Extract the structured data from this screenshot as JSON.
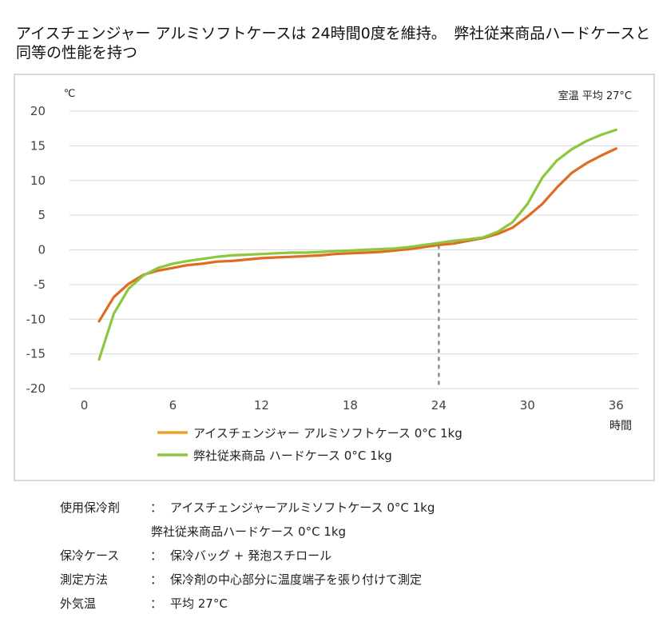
{
  "title": "アイスチェンジャー アルミソフトケースは 24時間0度を維持。　弊社従来商品ハードケースと同等の性能を持つ",
  "chart_data": {
    "type": "line",
    "title": "アイスチェンジャー アルミソフトケースは 24時間0度を維持。　弊社従来商品ハードケースと同等の性能を持つ",
    "ylabel": "℃",
    "xlabel": "時間",
    "annotation": "室温 平均 27°C",
    "xlim": [
      -1,
      37.5
    ],
    "ylim": [
      -20,
      20
    ],
    "xticks": [
      0,
      6,
      12,
      18,
      24,
      30,
      36
    ],
    "yticks": [
      20,
      15,
      10,
      5,
      0,
      -5,
      -10,
      -15,
      -20
    ],
    "y_tick_labels": [
      "20",
      "15",
      "10",
      "5",
      "0",
      "-5",
      "-10",
      "-15",
      "-20"
    ],
    "grid": true,
    "legend_position": "bottom-left",
    "reference_line": {
      "x": 24,
      "style": "dashed"
    },
    "x": [
      1,
      2,
      3,
      4,
      5,
      6,
      7,
      8,
      9,
      10,
      11,
      12,
      13,
      14,
      15,
      16,
      17,
      18,
      19,
      20,
      21,
      22,
      23,
      24,
      25,
      26,
      27,
      28,
      29,
      30,
      31,
      32,
      33,
      34,
      35,
      36
    ],
    "series": [
      {
        "name": "アイスチェンジャー アルミソフトケース 0°C 1kg",
        "color": "#e06c23",
        "values": [
          -10.3,
          -6.8,
          -4.9,
          -3.6,
          -3.0,
          -2.6,
          -2.2,
          -2.0,
          -1.7,
          -1.6,
          -1.4,
          -1.2,
          -1.1,
          -1.0,
          -0.9,
          -0.8,
          -0.6,
          -0.5,
          -0.4,
          -0.3,
          -0.1,
          0.1,
          0.4,
          0.7,
          0.9,
          1.3,
          1.7,
          2.3,
          3.2,
          4.8,
          6.6,
          9.0,
          11.1,
          12.5,
          13.6,
          14.6
        ]
      },
      {
        "name": "弊社従来商品 ハードケース 0°C 1kg",
        "color": "#8dc63f",
        "values": [
          -15.8,
          -9.2,
          -5.6,
          -3.7,
          -2.6,
          -2.0,
          -1.6,
          -1.3,
          -1.0,
          -0.8,
          -0.7,
          -0.6,
          -0.5,
          -0.4,
          -0.4,
          -0.3,
          -0.2,
          -0.1,
          0.0,
          0.1,
          0.2,
          0.4,
          0.7,
          1.0,
          1.3,
          1.5,
          1.8,
          2.6,
          4.0,
          6.6,
          10.4,
          12.9,
          14.5,
          15.7,
          16.6,
          17.3
        ]
      }
    ]
  },
  "legend_line_color": "#f0a020",
  "notes": {
    "rows": [
      {
        "label": "使用保冷剤",
        "colon": "：",
        "value": "アイスチェンジャーアルミソフトケース 0°C 1kg"
      },
      {
        "continuation": "弊社従来商品ハードケース 0°C 1kg"
      },
      {
        "label": "保冷ケース",
        "colon": "：",
        "value": "保冷バッグ + 発泡スチロール"
      },
      {
        "label": "測定方法",
        "colon": "：",
        "value": "保冷剤の中心部分に温度端子を張り付けて測定"
      },
      {
        "label": "外気温",
        "colon": "：",
        "value": "平均 27°C"
      }
    ]
  }
}
